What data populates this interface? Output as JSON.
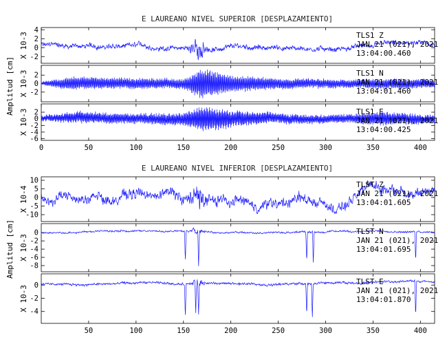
{
  "chart_data": [
    {
      "type": "line",
      "title": "E LAUREANO NIVEL SUPERIOR [DESPLAZAMIENTO]",
      "ylabel": "Amplitud [cm]",
      "xlim": [
        0,
        415
      ],
      "x_ticks": [
        "0",
        "50",
        "100",
        "150",
        "200",
        "250",
        "300",
        "350",
        "400"
      ],
      "series": [
        {
          "name": "TLS1  Z",
          "date": "JAN 21 (021), 2021",
          "time": "13:04:00.460",
          "scale": "X 10-3",
          "ylim": [
            -3.5,
            4.5
          ],
          "y_ticks": [
            "4",
            "2",
            "0",
            "-2"
          ],
          "burst_start": 155,
          "burst_end": 175,
          "noise_amp": 0.6,
          "burst_amp": 3.5,
          "osc_period": 0,
          "wander_amp": 0.6,
          "drift": [
            [
              0,
              0.6
            ],
            [
              100,
              0
            ],
            [
              200,
              -0.2
            ],
            [
              300,
              0
            ],
            [
              415,
              0.5
            ]
          ],
          "spikes": []
        },
        {
          "name": "TLS1  N",
          "date": "JAN 21 (021), 2021",
          "time": "13:04:01.460",
          "scale": "X 10-3",
          "ylim": [
            -4.3,
            4.3
          ],
          "y_ticks": [
            "2",
            "0",
            "-2"
          ],
          "burst_start": 160,
          "burst_end": 200,
          "noise_amp": 0.35,
          "burst_amp": 3.8,
          "osc_period": 3.2,
          "wander_amp": 0.2,
          "osc_env": [
            [
              0,
              0.3
            ],
            [
              30,
              1.6
            ],
            [
              60,
              1.4
            ],
            [
              100,
              1.3
            ],
            [
              150,
              1.2
            ],
            [
              170,
              3.8
            ],
            [
              200,
              2.0
            ],
            [
              260,
              1.2
            ],
            [
              320,
              1.0
            ],
            [
              380,
              1.3
            ],
            [
              415,
              1.0
            ]
          ],
          "drift": [
            [
              0,
              0
            ],
            [
              415,
              0
            ]
          ],
          "spikes": []
        },
        {
          "name": "TLS1  E",
          "date": "JAN 21 (021), 2021",
          "time": "13:04:00.425",
          "scale": "X 10-3",
          "ylim": [
            -6.5,
            4.5
          ],
          "y_ticks": [
            "2",
            "0",
            "-2",
            "-4",
            "-6"
          ],
          "burst_start": 150,
          "burst_end": 220,
          "noise_amp": 0.6,
          "burst_amp": 4.0,
          "osc_period": 3.0,
          "wander_amp": 0.4,
          "osc_env": [
            [
              0,
              0.8
            ],
            [
              40,
              1.8
            ],
            [
              100,
              1.5
            ],
            [
              150,
              2.0
            ],
            [
              170,
              4.0
            ],
            [
              220,
              2.0
            ],
            [
              280,
              1.3
            ],
            [
              330,
              1.4
            ],
            [
              360,
              2.2
            ],
            [
              415,
              1.2
            ]
          ],
          "drift": [
            [
              0,
              0
            ],
            [
              415,
              0
            ]
          ],
          "spikes": []
        }
      ]
    },
    {
      "type": "line",
      "title": "E LAUREANO NIVEL INFERIOR [DESPLAZAMIENTO]",
      "ylabel": "Amplitud [cm]",
      "xlim": [
        0,
        415
      ],
      "x_ticks": [
        "50",
        "100",
        "150",
        "200",
        "250",
        "300",
        "350",
        "400"
      ],
      "series": [
        {
          "name": "TLST  Z",
          "date": "JAN 21 (021), 2021",
          "time": "13:04:01.605",
          "scale": "X 10-4",
          "ylim": [
            -14,
            12
          ],
          "y_ticks": [
            "10",
            "5",
            "0",
            "-5",
            "-10"
          ],
          "burst_start": 155,
          "burst_end": 175,
          "noise_amp": 3.0,
          "burst_amp": 9.0,
          "osc_period": 0,
          "wander_amp": 4.0,
          "drift": [
            [
              0,
              0
            ],
            [
              100,
              2
            ],
            [
              250,
              -2
            ],
            [
              310,
              -5
            ],
            [
              360,
              4
            ],
            [
              415,
              2
            ]
          ],
          "spikes": []
        },
        {
          "name": "TLST  N",
          "date": "JAN 21 (021), 2021",
          "time": "13:04:01.695",
          "scale": "X 10-3",
          "ylim": [
            -9.5,
            2.2
          ],
          "y_ticks": [
            "0",
            "-2",
            "-4",
            "-6",
            "-8"
          ],
          "burst_start": 158,
          "burst_end": 170,
          "noise_amp": 0.25,
          "burst_amp": 1.8,
          "osc_period": 0,
          "wander_amp": 0.2,
          "drift": [
            [
              0,
              0
            ],
            [
              100,
              0.5
            ],
            [
              200,
              0.1
            ],
            [
              300,
              0.2
            ],
            [
              415,
              0.4
            ]
          ],
          "spikes": [
            [
              152,
              -7.5
            ],
            [
              166,
              -7.8
            ],
            [
              280,
              -7.5
            ],
            [
              287,
              -8.2
            ],
            [
              395,
              -7.2
            ]
          ]
        },
        {
          "name": "TLST  E",
          "date": "JAN 21 (021), 2021",
          "time": "13:04:01.870",
          "scale": "X 10-3",
          "ylim": [
            -5.8,
            1.7
          ],
          "y_ticks": [
            "0",
            "-2",
            "-4"
          ],
          "burst_start": 158,
          "burst_end": 172,
          "noise_amp": 0.2,
          "burst_amp": 1.3,
          "osc_period": 0,
          "wander_amp": 0.15,
          "drift": [
            [
              0,
              0.2
            ],
            [
              150,
              0.2
            ],
            [
              250,
              0.2
            ],
            [
              415,
              0.6
            ]
          ],
          "spikes": [
            [
              152,
              -5.0
            ],
            [
              163,
              -4.6
            ],
            [
              166,
              -5.2
            ],
            [
              280,
              -4.7
            ],
            [
              286,
              -5.3
            ],
            [
              395,
              -5.5
            ]
          ]
        }
      ]
    }
  ]
}
